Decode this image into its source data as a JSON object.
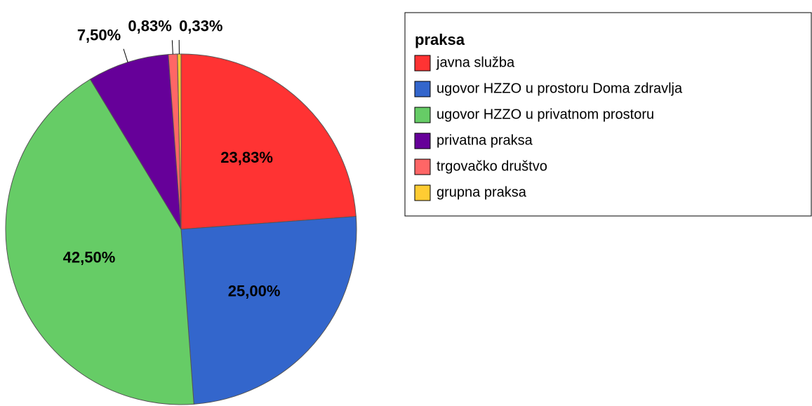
{
  "chart_data": {
    "type": "pie",
    "legend_title": "praksa",
    "categories": [
      "javna služba",
      "ugovor HZZO u prostoru Doma zdravlja",
      "ugovor HZZO u privatnom prostoru",
      "privatna praksa",
      "trgovačko društvo",
      "grupna praksa"
    ],
    "values": [
      23.83,
      25.0,
      42.5,
      7.5,
      0.83,
      0.33
    ],
    "value_labels": [
      "23,83%",
      "25,00%",
      "42,50%",
      "7,50%",
      "0,83%",
      "0,33%"
    ],
    "colors": [
      "#ff3333",
      "#3366cc",
      "#66cc66",
      "#660099",
      "#ff6666",
      "#ffcc33"
    ],
    "legend": "right"
  }
}
